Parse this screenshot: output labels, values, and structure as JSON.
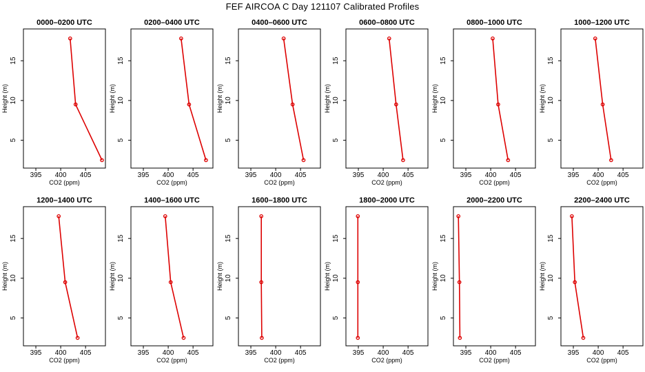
{
  "title": "FEF AIRCOA C  Day 121107  Calibrated Profiles",
  "colors": {
    "series": "#dd0000",
    "axis": "#000000",
    "background": "#ffffff"
  },
  "chart_data": [
    {
      "type": "line",
      "title": "0000–0200 UTC",
      "xlabel": "CO2 (ppm)",
      "ylabel": "Height (m)",
      "xlim": [
        392.5,
        409
      ],
      "ylim": [
        1.5,
        19
      ],
      "xticks": [
        395,
        400,
        405
      ],
      "yticks": [
        5,
        10,
        15
      ],
      "x": [
        408.3,
        403.0,
        401.9
      ],
      "y": [
        2.5,
        9.5,
        17.8
      ]
    },
    {
      "type": "line",
      "title": "0200–0400 UTC",
      "xlabel": "CO2 (ppm)",
      "ylabel": "Height (m)",
      "xlim": [
        392.5,
        409
      ],
      "ylim": [
        1.5,
        19
      ],
      "xticks": [
        395,
        400,
        405
      ],
      "yticks": [
        5,
        10,
        15
      ],
      "x": [
        407.6,
        404.2,
        402.6
      ],
      "y": [
        2.5,
        9.5,
        17.8
      ]
    },
    {
      "type": "line",
      "title": "0400–0600 UTC",
      "xlabel": "CO2 (ppm)",
      "ylabel": "Height (m)",
      "xlim": [
        392.5,
        409
      ],
      "ylim": [
        1.5,
        19
      ],
      "xticks": [
        395,
        400,
        405
      ],
      "yticks": [
        5,
        10,
        15
      ],
      "x": [
        405.6,
        403.4,
        401.6
      ],
      "y": [
        2.5,
        9.5,
        17.8
      ]
    },
    {
      "type": "line",
      "title": "0600–0800 UTC",
      "xlabel": "CO2 (ppm)",
      "ylabel": "Height (m)",
      "xlim": [
        392.5,
        409
      ],
      "ylim": [
        1.5,
        19
      ],
      "xticks": [
        395,
        400,
        405
      ],
      "yticks": [
        5,
        10,
        15
      ],
      "x": [
        404.0,
        402.6,
        401.2
      ],
      "y": [
        2.5,
        9.5,
        17.8
      ]
    },
    {
      "type": "line",
      "title": "0800–1000 UTC",
      "xlabel": "CO2 (ppm)",
      "ylabel": "Height (m)",
      "xlim": [
        392.5,
        409
      ],
      "ylim": [
        1.5,
        19
      ],
      "xticks": [
        395,
        400,
        405
      ],
      "yticks": [
        5,
        10,
        15
      ],
      "x": [
        403.5,
        401.5,
        400.4
      ],
      "y": [
        2.5,
        9.5,
        17.8
      ]
    },
    {
      "type": "line",
      "title": "1000–1200 UTC",
      "xlabel": "CO2 (ppm)",
      "ylabel": "Height (m)",
      "xlim": [
        392.5,
        409
      ],
      "ylim": [
        1.5,
        19
      ],
      "xticks": [
        395,
        400,
        405
      ],
      "yticks": [
        5,
        10,
        15
      ],
      "x": [
        402.6,
        400.9,
        399.4
      ],
      "y": [
        2.5,
        9.5,
        17.8
      ]
    },
    {
      "type": "line",
      "title": "1200–1400 UTC",
      "xlabel": "CO2 (ppm)",
      "ylabel": "Height (m)",
      "xlim": [
        392.5,
        409
      ],
      "ylim": [
        1.5,
        19
      ],
      "xticks": [
        395,
        400,
        405
      ],
      "yticks": [
        5,
        10,
        15
      ],
      "x": [
        403.4,
        400.9,
        399.6
      ],
      "y": [
        2.5,
        9.5,
        17.8
      ]
    },
    {
      "type": "line",
      "title": "1400–1600 UTC",
      "xlabel": "CO2 (ppm)",
      "ylabel": "Height (m)",
      "xlim": [
        392.5,
        409
      ],
      "ylim": [
        1.5,
        19
      ],
      "xticks": [
        395,
        400,
        405
      ],
      "yticks": [
        5,
        10,
        15
      ],
      "x": [
        403.1,
        400.5,
        399.4
      ],
      "y": [
        2.5,
        9.5,
        17.8
      ]
    },
    {
      "type": "line",
      "title": "1600–1800 UTC",
      "xlabel": "CO2 (ppm)",
      "ylabel": "Height (m)",
      "xlim": [
        392.5,
        409
      ],
      "ylim": [
        1.5,
        19
      ],
      "xticks": [
        395,
        400,
        405
      ],
      "yticks": [
        5,
        10,
        15
      ],
      "x": [
        397.2,
        397.1,
        397.1
      ],
      "y": [
        2.5,
        9.5,
        17.8
      ]
    },
    {
      "type": "line",
      "title": "1800–2000 UTC",
      "xlabel": "CO2 (ppm)",
      "ylabel": "Height (m)",
      "xlim": [
        392.5,
        409
      ],
      "ylim": [
        1.5,
        19
      ],
      "xticks": [
        395,
        400,
        405
      ],
      "yticks": [
        5,
        10,
        15
      ],
      "x": [
        394.9,
        394.9,
        394.9
      ],
      "y": [
        2.5,
        9.5,
        17.8
      ]
    },
    {
      "type": "line",
      "title": "2000–2200 UTC",
      "xlabel": "CO2 (ppm)",
      "ylabel": "Height (m)",
      "xlim": [
        392.5,
        409
      ],
      "ylim": [
        1.5,
        19
      ],
      "xticks": [
        395,
        400,
        405
      ],
      "yticks": [
        5,
        10,
        15
      ],
      "x": [
        393.8,
        393.7,
        393.5
      ],
      "y": [
        2.5,
        9.5,
        17.8
      ]
    },
    {
      "type": "line",
      "title": "2200–2400 UTC",
      "xlabel": "CO2 (ppm)",
      "ylabel": "Height (m)",
      "xlim": [
        392.5,
        409
      ],
      "ylim": [
        1.5,
        19
      ],
      "xticks": [
        395,
        400,
        405
      ],
      "yticks": [
        5,
        10,
        15
      ],
      "x": [
        397.0,
        395.3,
        394.7
      ],
      "y": [
        2.5,
        9.5,
        17.8
      ]
    }
  ]
}
